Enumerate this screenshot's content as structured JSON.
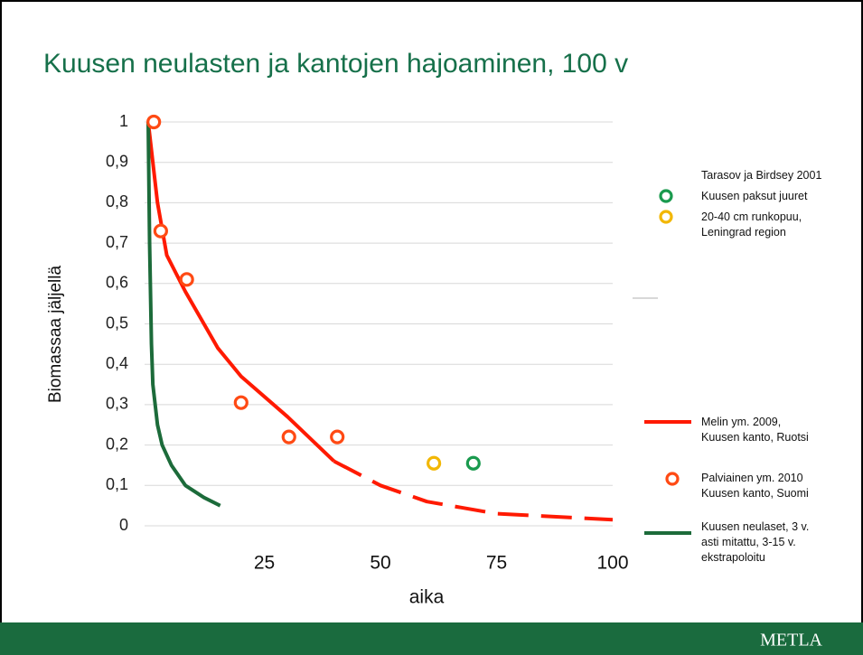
{
  "header": {
    "title": "Kuusen neulasten ja kantojen hajoaminen, 100 v"
  },
  "chart_data": {
    "type": "scatter",
    "x_label": "aika",
    "y_label": "Biomassaa jäljellä",
    "xlim": [
      0,
      100
    ],
    "xticks": [
      25,
      50,
      75,
      100
    ],
    "ylim": [
      0,
      1
    ],
    "yticks": [
      0,
      {
        "value": 0.1,
        "label": "0,1"
      },
      {
        "value": 0.2,
        "label": "0,2"
      },
      {
        "value": 0.3,
        "label": "0,3"
      },
      {
        "value": 0.4,
        "label": "0,4"
      },
      {
        "value": 0.5,
        "label": "0,5"
      },
      {
        "value": 0.6,
        "label": "0,6"
      },
      {
        "value": 0.7,
        "label": "0,7"
      },
      {
        "value": 0.8,
        "label": "0,8"
      },
      {
        "value": 0.9,
        "label": "0,9"
      },
      1
    ],
    "grid": true,
    "legend_heading": "Tarasov ja Birdsey 2001",
    "series": [
      {
        "name": "Kuusen  paksut juuret",
        "kind": "marker",
        "color": "#1a9a4e",
        "x": [
          70
        ],
        "values": [
          0.155
        ]
      },
      {
        "name": "20-40 cm runkopuu,\nLeningrad region",
        "kind": "marker",
        "color": "#f2b705",
        "x": [
          61.5
        ],
        "values": [
          0.155
        ]
      },
      {
        "name": "Melin ym. 2009,\nKuusen kanto, Ruotsi",
        "kind": "line",
        "color": "#ff1a00",
        "dashed_from": 40,
        "x": [
          0,
          2,
          4,
          8,
          15,
          20,
          30,
          40,
          50,
          60,
          75,
          100
        ],
        "values": [
          1,
          0.8,
          0.67,
          0.58,
          0.44,
          0.37,
          0.27,
          0.16,
          0.1,
          0.06,
          0.03,
          0.015
        ]
      },
      {
        "name": "Palviainen ym. 2010\nKuusen kanto, Suomi",
        "kind": "marker",
        "color": "#ff4a14",
        "x": [
          1.2,
          2.7,
          8.3,
          20,
          30.3,
          40.7
        ],
        "values": [
          1,
          0.73,
          0.61,
          0.305,
          0.22,
          0.22
        ]
      },
      {
        "name": "Kuusen neulaset, 3 v.\nasti mitattu, 3-15 v.\nekstrapoloitu",
        "kind": "line",
        "color": "#1c6b3a",
        "x": [
          0,
          0.3,
          0.7,
          1,
          2,
          3,
          5,
          8,
          12,
          15.5
        ],
        "values": [
          1,
          0.7,
          0.45,
          0.35,
          0.25,
          0.2,
          0.15,
          0.1,
          0.07,
          0.05
        ]
      }
    ]
  },
  "footer": {
    "brand": "METLA"
  }
}
